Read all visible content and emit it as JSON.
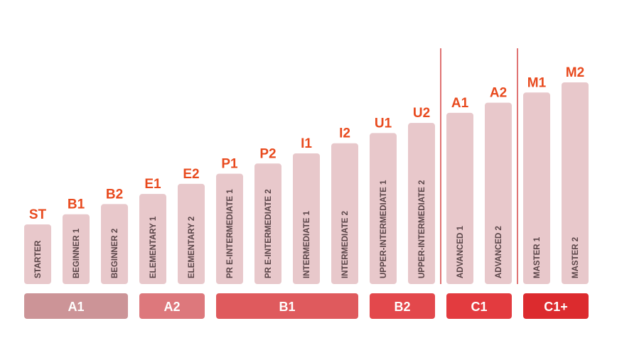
{
  "chart_data": {
    "type": "bar",
    "title": "",
    "xlabel": "",
    "ylabel": "",
    "grid": false,
    "categories": [
      "ST",
      "B1",
      "B2",
      "E1",
      "E2",
      "P1",
      "P2",
      "I1",
      "I2",
      "U1",
      "U2",
      "A1",
      "A2",
      "M1",
      "M2"
    ],
    "labels": [
      "STARTER",
      "BEGINNER 1",
      "BEGINNER 2",
      "ELEMENTARY 1",
      "ELEMENTARY 2",
      "PR E-INTERMEDIATE 1",
      "PR E-INTERMEDIATE 2",
      "INTERMEDIATE 1",
      "INTERMEDIATE 2",
      "UPPER-INTERMEDIATE 1",
      "UPPER-INTERMEDIATE 2",
      "ADVANCED 1",
      "ADVANCED 2",
      "MASTER 1",
      "MASTER 2"
    ],
    "values": [
      1,
      2,
      3,
      4,
      5,
      6,
      7,
      8,
      9,
      10,
      11,
      12,
      13,
      14,
      15
    ],
    "ylim": [
      0,
      15
    ],
    "bar_color": "#e8c8cb",
    "code_color": "#e84a1e",
    "groups": [
      {
        "label": "A1",
        "start": 0,
        "end": 2,
        "color": "#cc9497"
      },
      {
        "label": "A2",
        "start": 3,
        "end": 4,
        "color": "#dd787c"
      },
      {
        "label": "B1",
        "start": 5,
        "end": 8,
        "color": "#df5a5d"
      },
      {
        "label": "B2",
        "start": 9,
        "end": 10,
        "color": "#e3484c"
      },
      {
        "label": "C1",
        "start": 11,
        "end": 12,
        "color": "#e33b3f"
      },
      {
        "label": "C1+",
        "start": 13,
        "end": 14,
        "color": "#dc2b2e"
      }
    ],
    "dividers_after": [
      10,
      12
    ]
  }
}
